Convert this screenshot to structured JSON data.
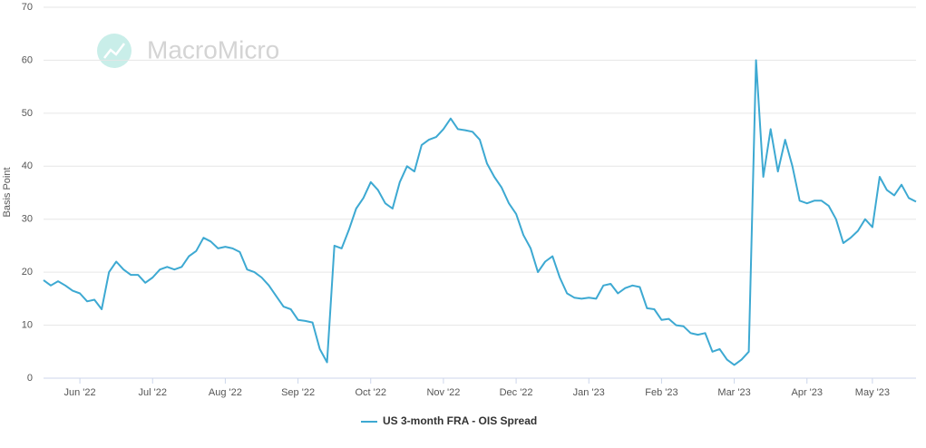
{
  "chart_data": {
    "type": "line",
    "watermark": "MacroMicro",
    "y_label": "Basis Point",
    "categories": [
      null,
      null,
      null,
      null,
      null,
      "Jun '22",
      null,
      null,
      null,
      null,
      null,
      null,
      null,
      null,
      null,
      "Jul '22",
      null,
      null,
      null,
      null,
      null,
      null,
      null,
      null,
      null,
      "Aug '22",
      null,
      null,
      null,
      null,
      null,
      null,
      null,
      null,
      null,
      "Sep '22",
      null,
      null,
      null,
      null,
      null,
      null,
      null,
      null,
      null,
      "Oct '22",
      null,
      null,
      null,
      null,
      null,
      null,
      null,
      null,
      null,
      "Nov '22",
      null,
      null,
      null,
      null,
      null,
      null,
      null,
      null,
      null,
      "Dec '22",
      null,
      null,
      null,
      null,
      null,
      null,
      null,
      null,
      null,
      "Jan '23",
      null,
      null,
      null,
      null,
      null,
      null,
      null,
      null,
      null,
      "Feb '23",
      null,
      null,
      null,
      null,
      null,
      null,
      null,
      null,
      null,
      "Mar '23",
      null,
      null,
      null,
      null,
      null,
      null,
      null,
      null,
      null,
      "Apr '23",
      null,
      null,
      null,
      null,
      null,
      null,
      null,
      null,
      "May '23",
      null,
      null,
      null,
      null,
      null,
      null
    ],
    "series": [
      {
        "name": "US 3-month FRA - OIS Spread",
        "color": "#3da9d2",
        "values": [
          18.5,
          17.5,
          18.3,
          17.5,
          16.5,
          16,
          14.5,
          14.8,
          13,
          20,
          22,
          20.5,
          19.5,
          19.5,
          18,
          19,
          20.5,
          21,
          20.5,
          21,
          23,
          24,
          26.5,
          25.8,
          24.5,
          24.8,
          24.5,
          23.8,
          20.5,
          20,
          19,
          17.5,
          15.5,
          13.5,
          13,
          11,
          10.8,
          10.5,
          5.5,
          3,
          25,
          24.5,
          28,
          32,
          34,
          37,
          35.5,
          33,
          32,
          37,
          40,
          39,
          44,
          45,
          45.5,
          47,
          49,
          47,
          46.8,
          46.5,
          45,
          40.5,
          38,
          36,
          33,
          31,
          27,
          24.5,
          20,
          22,
          23,
          19,
          16,
          15.2,
          15,
          15.2,
          15,
          17.5,
          17.8,
          16,
          17,
          17.5,
          17.2,
          13.2,
          13,
          11,
          11.2,
          10,
          9.8,
          8.5,
          8.2,
          8.5,
          5,
          5.5,
          3.5,
          2.5,
          3.5,
          5,
          60,
          38,
          47,
          39,
          45,
          40,
          33.5,
          33,
          33.5,
          33.5,
          32.5,
          30,
          25.5,
          26.5,
          27.8,
          30,
          28.5,
          38,
          35.5,
          34.5,
          36.5,
          34,
          33.3
        ]
      }
    ],
    "ylim": [
      0,
      70
    ],
    "yticks": [
      0,
      10,
      20,
      30,
      40,
      50,
      60,
      70
    ],
    "grid": true,
    "legend": "bottom"
  }
}
